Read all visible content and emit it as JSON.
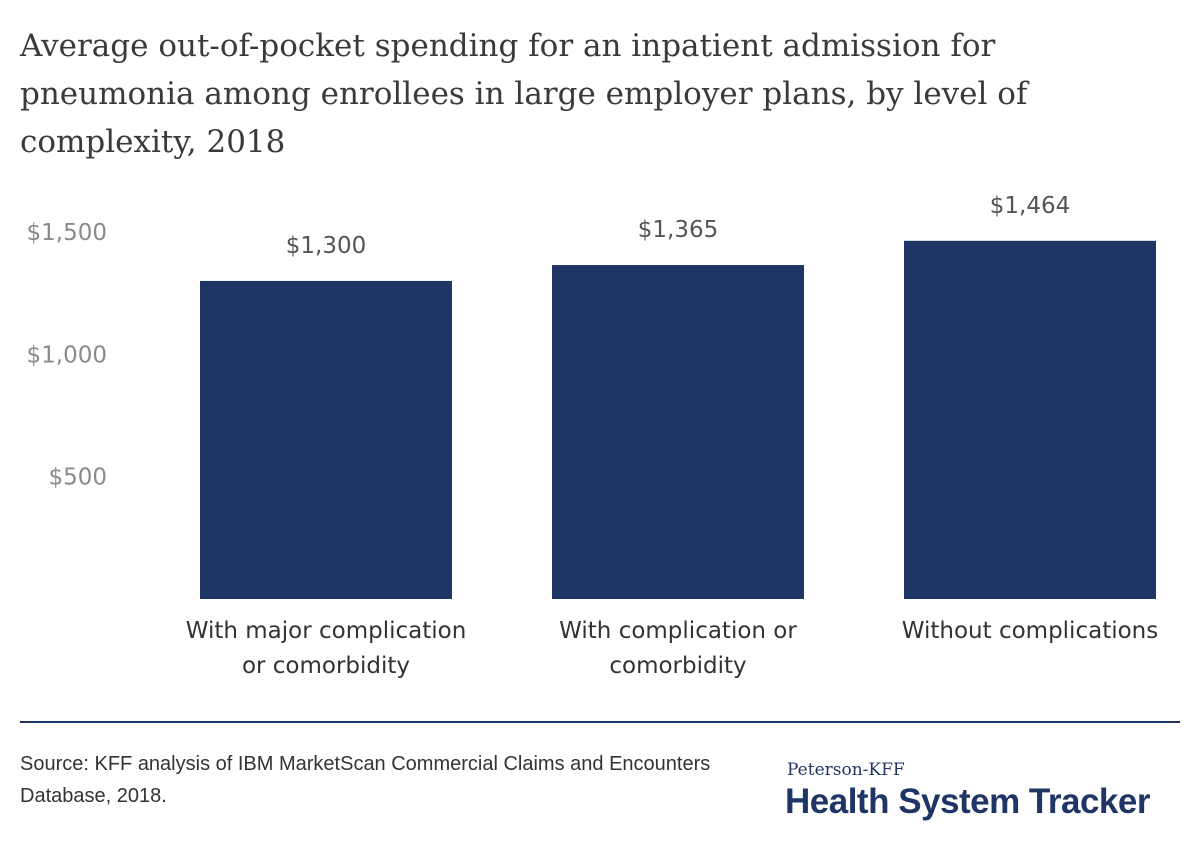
{
  "title": "Average out-of-pocket spending for an inpatient admission for pneumonia among enrollees in large employer plans, by level of complexity, 2018",
  "source": "Source: KFF analysis of IBM MarketScan Commercial Claims and Encounters Database, 2018.",
  "brand": {
    "small": "Peterson-KFF",
    "big": "Health System Tracker"
  },
  "chart_data": {
    "type": "bar",
    "categories": [
      [
        "With major complication",
        "or comorbidity"
      ],
      [
        "With complication or",
        "comorbidity"
      ],
      [
        "Without complications"
      ]
    ],
    "values": [
      1300,
      1365,
      1464
    ],
    "data_labels": [
      "$1,300",
      "$1,365",
      "$1,464"
    ],
    "yticks": [
      {
        "value": 500,
        "label": "$500"
      },
      {
        "value": 1000,
        "label": "$1,000"
      },
      {
        "value": 1500,
        "label": "$1,500"
      }
    ],
    "ylim": [
      0,
      1500
    ],
    "grid": false,
    "bar_color": "#1f3566"
  }
}
